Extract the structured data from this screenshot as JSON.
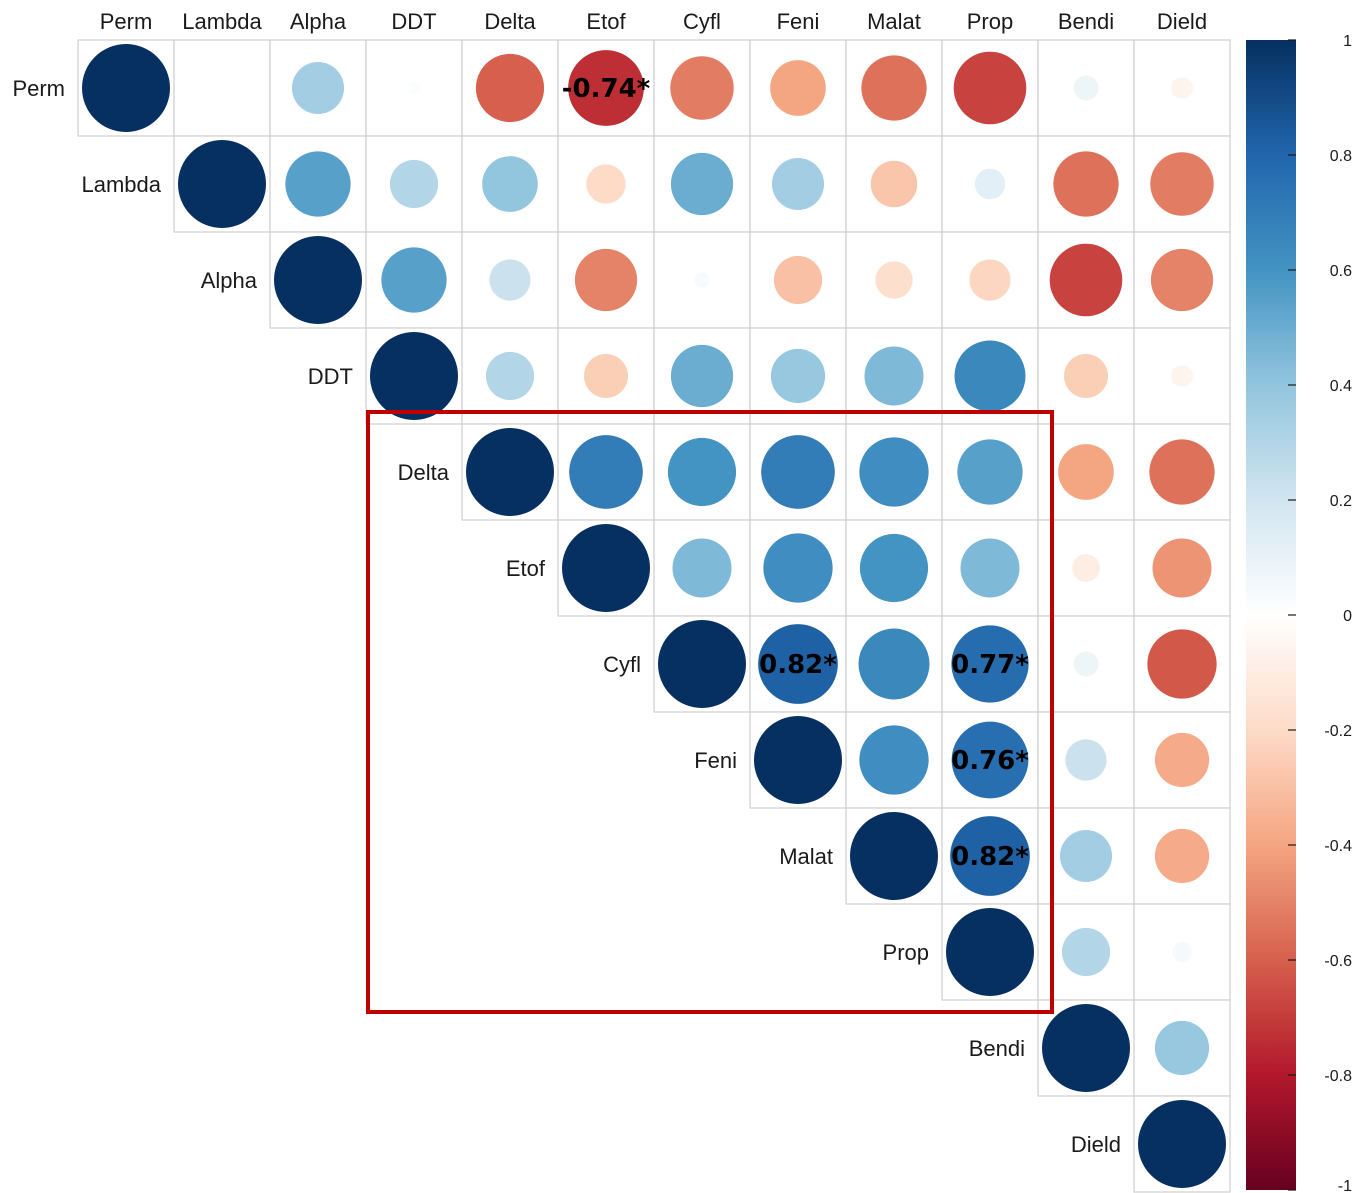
{
  "chart_data": {
    "type": "heatmap",
    "subtype": "correlation-circle-matrix (upper triangle)",
    "variables": [
      "Perm",
      "Lambda",
      "Alpha",
      "DDT",
      "Delta",
      "Etof",
      "Cyfl",
      "Feni",
      "Malat",
      "Prop",
      "Bendi",
      "Dield"
    ],
    "matrix": [
      [
        1.0,
        0.0,
        0.35,
        0.02,
        -0.6,
        -0.74,
        -0.52,
        -0.4,
        -0.55,
        -0.68,
        0.08,
        -0.06
      ],
      [
        null,
        1.0,
        0.55,
        0.3,
        0.4,
        -0.2,
        0.5,
        0.35,
        -0.28,
        0.12,
        -0.55,
        -0.52
      ],
      [
        null,
        null,
        1.0,
        0.55,
        0.22,
        -0.5,
        0.03,
        -0.3,
        -0.18,
        -0.22,
        -0.68,
        -0.5
      ],
      [
        null,
        null,
        null,
        1.0,
        0.3,
        -0.25,
        0.5,
        0.38,
        0.45,
        0.65,
        -0.25,
        -0.06
      ],
      [
        null,
        null,
        null,
        null,
        1.0,
        0.7,
        0.6,
        0.7,
        0.62,
        0.55,
        -0.4,
        -0.55
      ],
      [
        null,
        null,
        null,
        null,
        null,
        1.0,
        0.45,
        0.62,
        0.6,
        0.45,
        -0.1,
        -0.45
      ],
      [
        null,
        null,
        null,
        null,
        null,
        null,
        1.0,
        0.82,
        0.65,
        0.77,
        0.08,
        -0.62
      ],
      [
        null,
        null,
        null,
        null,
        null,
        null,
        null,
        1.0,
        0.62,
        0.76,
        0.22,
        -0.38
      ],
      [
        null,
        null,
        null,
        null,
        null,
        null,
        null,
        null,
        1.0,
        0.82,
        0.35,
        -0.38
      ],
      [
        null,
        null,
        null,
        null,
        null,
        null,
        null,
        null,
        null,
        1.0,
        0.3,
        0.05
      ],
      [
        null,
        null,
        null,
        null,
        null,
        null,
        null,
        null,
        null,
        null,
        1.0,
        0.38
      ],
      [
        null,
        null,
        null,
        null,
        null,
        null,
        null,
        null,
        null,
        null,
        null,
        1.0
      ]
    ],
    "annotations": [
      {
        "row": "Perm",
        "col": "Etof",
        "text": "-0.74*"
      },
      {
        "row": "Cyfl",
        "col": "Feni",
        "text": "0.82*"
      },
      {
        "row": "Cyfl",
        "col": "Prop",
        "text": "0.77*"
      },
      {
        "row": "Feni",
        "col": "Prop",
        "text": "0.76*"
      },
      {
        "row": "Malat",
        "col": "Prop",
        "text": "0.82*"
      }
    ],
    "highlight_box": {
      "from": "Delta",
      "to": "Prop",
      "color": "#c00000"
    },
    "colorbar": {
      "range": [
        -1,
        1
      ],
      "ticks": [
        "1",
        "0.8",
        "0.6",
        "0.4",
        "0.2",
        "0",
        "-0.2",
        "-0.4",
        "-0.6",
        "-0.8",
        "-1"
      ],
      "colors": [
        "#67001f",
        "#b2182b",
        "#d6604d",
        "#f4a582",
        "#fddbc7",
        "#ffffff",
        "#d1e5f0",
        "#92c5de",
        "#4393c3",
        "#2166ac",
        "#053061"
      ]
    }
  }
}
